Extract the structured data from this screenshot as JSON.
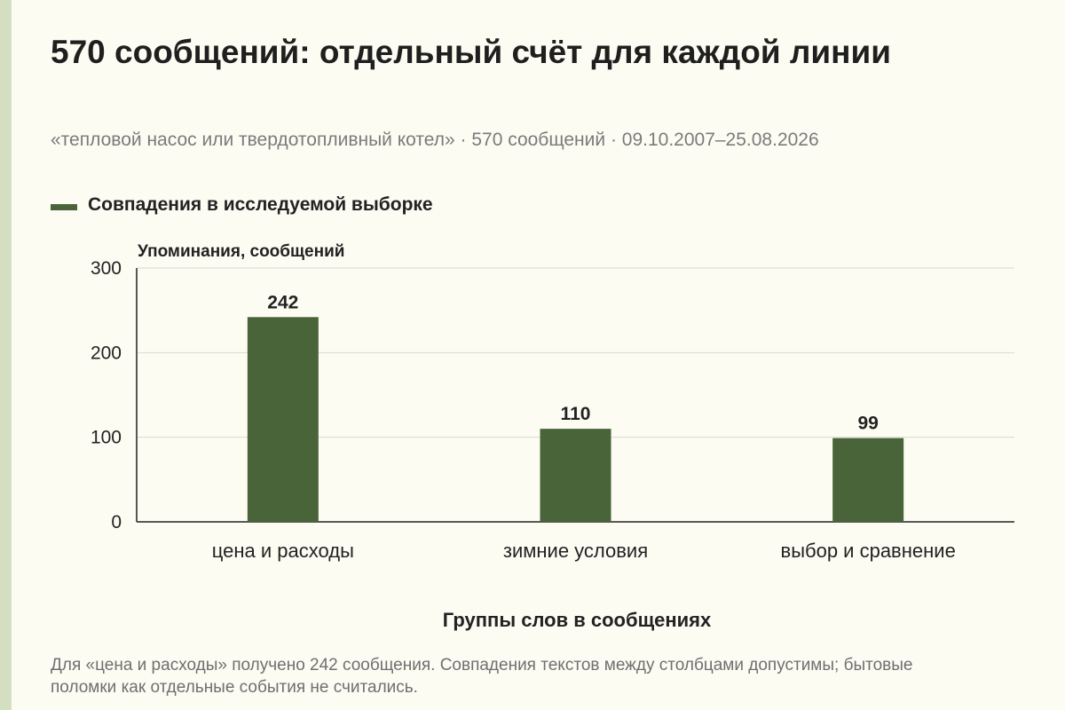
{
  "title": "570 сообщений: отдельный счёт для каждой линии",
  "subtitle": "«тепловой насос или твердотопливный котел» · 570 сообщений · 09.10.2007–25.08.2026",
  "footnote": "Для «цена и расходы» получено 242 сообщения. Совпадения текстов между столбцами допустимы; бытовые поломки как отдельные события не считались.",
  "colors": {
    "bar": "#4a643a",
    "grid": "#d9d9d0",
    "axis": "#222222",
    "background": "#fdfcf3"
  },
  "chart_data": {
    "type": "bar",
    "categories": [
      "цена и расходы",
      "зимние условия",
      "выбор и сравнение"
    ],
    "series": [
      {
        "name": "Совпадения в исследуемой выборке",
        "values": [
          242,
          110,
          99
        ]
      }
    ],
    "data_labels": [
      "242",
      "110",
      "99"
    ],
    "xlabel": "Группы слов в сообщениях",
    "ylabel": "Упоминания, сообщений",
    "ylim": [
      0,
      300
    ],
    "yticks": [
      0,
      100,
      200,
      300
    ],
    "grid": true,
    "legend": "top-left"
  }
}
